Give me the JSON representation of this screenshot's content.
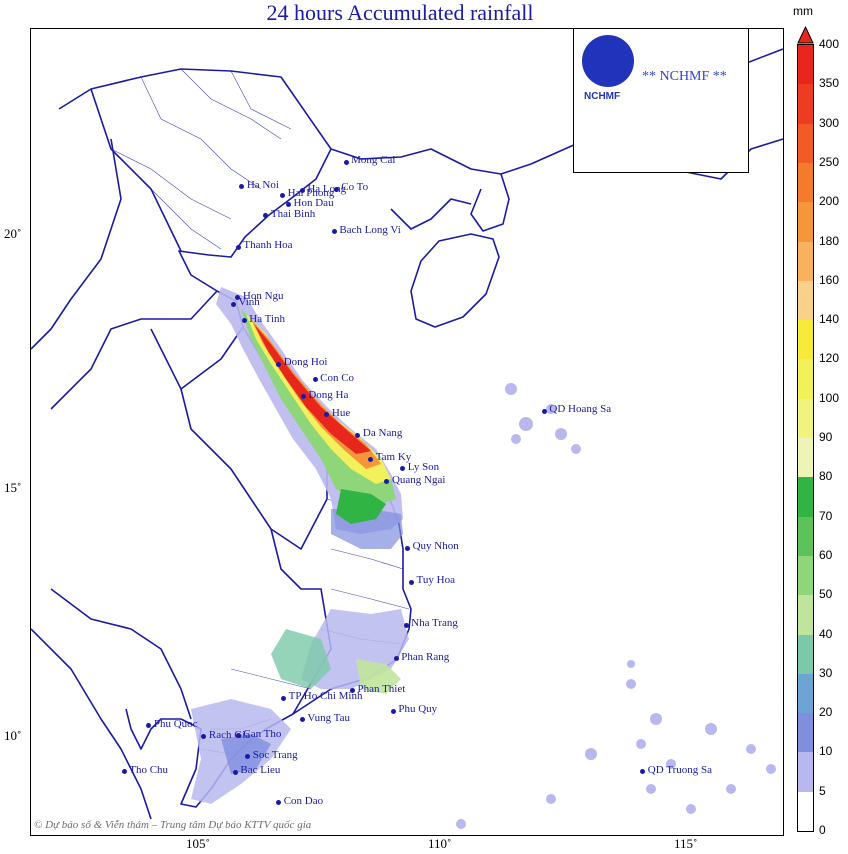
{
  "title": "24 hours Accumulated rainfall",
  "unit": "mm",
  "logo": {
    "abbr": "NCHMF",
    "name": "** NCHMF **"
  },
  "credit": "© Dự báo số & Viễn thám – Trung tâm Dự báo KTTV quốc gia",
  "lat_labels": [
    "20˚",
    "15˚",
    "10˚"
  ],
  "lon_labels": [
    "105˚",
    "110˚",
    "115˚"
  ],
  "legend": {
    "levels": [
      "400",
      "350",
      "300",
      "250",
      "200",
      "180",
      "160",
      "140",
      "120",
      "100",
      "90",
      "80",
      "70",
      "60",
      "50",
      "40",
      "30",
      "20",
      "10",
      "5",
      "0"
    ],
    "colors": [
      "#e8261c",
      "#ee3c22",
      "#f25a28",
      "#f47a2c",
      "#f6963a",
      "#f8b25e",
      "#fad18a",
      "#f7ea3a",
      "#f3f15b",
      "#f1f37f",
      "#eef4b5",
      "#30b444",
      "#5bc35a",
      "#8fd57a",
      "#c1e49c",
      "#7cc9a9",
      "#6ea4d4",
      "#7f8fde",
      "#b9b8ee",
      "#ffffff"
    ]
  },
  "places": [
    {
      "name": "Mong Cai",
      "lon": 107.97,
      "lat": 21.52
    },
    {
      "name": "Ha Long",
      "lon": 107.08,
      "lat": 20.95
    },
    {
      "name": "Ha Noi",
      "lon": 105.85,
      "lat": 21.03
    },
    {
      "name": "Co To",
      "lon": 107.77,
      "lat": 20.98
    },
    {
      "name": "Hai Phong",
      "lon": 106.68,
      "lat": 20.86
    },
    {
      "name": "Hon Dau",
      "lon": 106.8,
      "lat": 20.67
    },
    {
      "name": "Thai Binh",
      "lon": 106.34,
      "lat": 20.45
    },
    {
      "name": "Bach Long Vi",
      "lon": 107.73,
      "lat": 20.13
    },
    {
      "name": "Thanh Hoa",
      "lon": 105.78,
      "lat": 19.81
    },
    {
      "name": "Vinh",
      "lon": 105.68,
      "lat": 18.67
    },
    {
      "name": "Hon Ngu",
      "lon": 105.77,
      "lat": 18.8
    },
    {
      "name": "Ha Tinh",
      "lon": 105.9,
      "lat": 18.34
    },
    {
      "name": "Dong Hoi",
      "lon": 106.6,
      "lat": 17.47
    },
    {
      "name": "Con Co",
      "lon": 107.34,
      "lat": 17.16
    },
    {
      "name": "Dong Ha",
      "lon": 107.1,
      "lat": 16.82
    },
    {
      "name": "QD Hoang Sa",
      "lon": 112.0,
      "lat": 16.53
    },
    {
      "name": "Hue",
      "lon": 107.58,
      "lat": 16.46
    },
    {
      "name": "Da Nang",
      "lon": 108.21,
      "lat": 16.05
    },
    {
      "name": "Tam Ky",
      "lon": 108.47,
      "lat": 15.57
    },
    {
      "name": "Ly Son",
      "lon": 109.12,
      "lat": 15.38
    },
    {
      "name": "Quang Ngai",
      "lon": 108.8,
      "lat": 15.12
    },
    {
      "name": "Quy Nhon",
      "lon": 109.22,
      "lat": 13.78
    },
    {
      "name": "Tuy Hoa",
      "lon": 109.3,
      "lat": 13.1
    },
    {
      "name": "Nha Trang",
      "lon": 109.19,
      "lat": 12.24
    },
    {
      "name": "Phan Rang",
      "lon": 108.99,
      "lat": 11.57
    },
    {
      "name": "Phan Thiet",
      "lon": 108.1,
      "lat": 10.93
    },
    {
      "name": "TP Ho Chi Minh",
      "lon": 106.7,
      "lat": 10.78
    },
    {
      "name": "Phu Quy",
      "lon": 108.93,
      "lat": 10.52
    },
    {
      "name": "Phu Quoc",
      "lon": 103.96,
      "lat": 10.23
    },
    {
      "name": "Vung Tau",
      "lon": 107.08,
      "lat": 10.35
    },
    {
      "name": "Rach Gia",
      "lon": 105.08,
      "lat": 10.01
    },
    {
      "name": "Can Tho",
      "lon": 105.78,
      "lat": 10.03
    },
    {
      "name": "Tho Chu",
      "lon": 103.46,
      "lat": 9.3
    },
    {
      "name": "Soc Trang",
      "lon": 105.97,
      "lat": 9.6
    },
    {
      "name": "Bac Lieu",
      "lon": 105.72,
      "lat": 9.29
    },
    {
      "name": "QD Truong Sa",
      "lon": 114.0,
      "lat": 9.3
    },
    {
      "name": "Con Dao",
      "lon": 106.6,
      "lat": 8.68
    }
  ]
}
